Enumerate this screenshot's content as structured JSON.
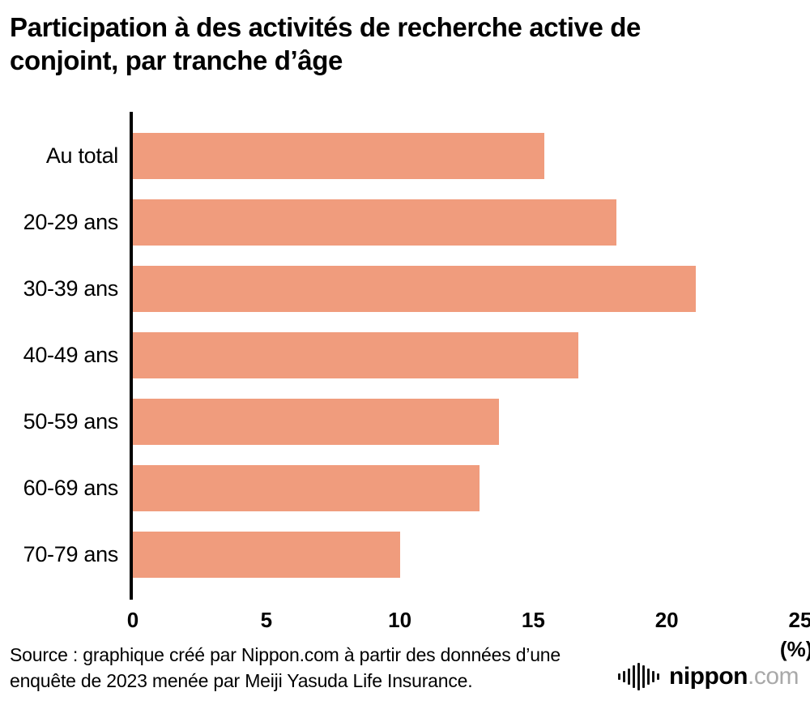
{
  "title": "Participation à des activités de recherche active de\nconjoint, par tranche d’âge",
  "chart_data": {
    "type": "bar",
    "orientation": "horizontal",
    "title": "Participation à des activités de recherche active de conjoint, par tranche d’âge",
    "categories": [
      "Au total",
      "20-29 ans",
      "30-39 ans",
      "40-49 ans",
      "50-59 ans",
      "60-69 ans",
      "70-79 ans"
    ],
    "values": [
      15.4,
      18.1,
      21.1,
      16.7,
      13.7,
      13.0,
      10.0
    ],
    "xlim": [
      0,
      25
    ],
    "xticks": [
      0,
      5,
      10,
      15,
      20,
      25
    ],
    "xlabel": "(%)",
    "ylabel": "",
    "bar_color": "#F09C7D",
    "axis_color": "#000000",
    "grid": false,
    "legend": false
  },
  "source_text": "Source : graphique créé par Nippon.com à partir des données d’une\nenquête de 2023 menée par Meiji Yasuda Life Insurance.",
  "logo": {
    "name": "nippon",
    "suffix": ".com"
  }
}
